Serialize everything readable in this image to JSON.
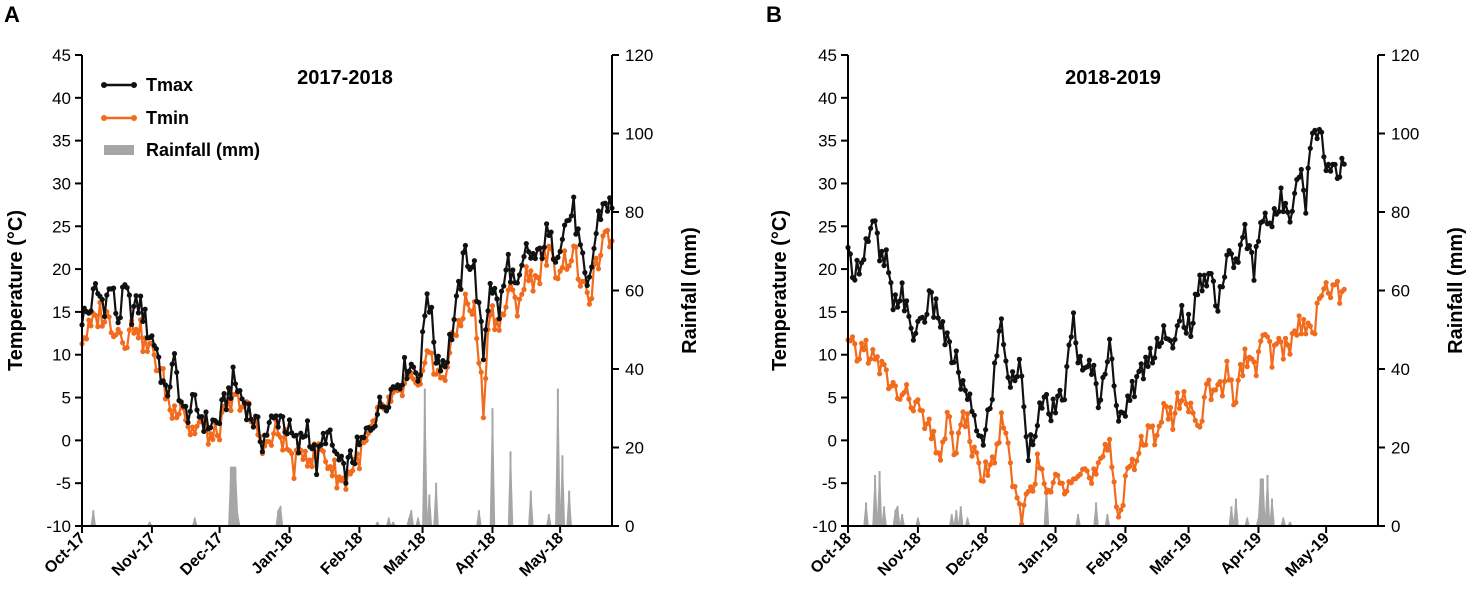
{
  "colors": {
    "tmax": "#111111",
    "tmin": "#f26b1d",
    "rain": "#a6a6a8",
    "axis": "#000000"
  },
  "legend": {
    "tmax": "Tmax",
    "tmin": "Tmin",
    "rain": "Rainfall (mm)"
  },
  "chart_data": [
    {
      "panel": "A",
      "type": "line",
      "title": "2017-2018",
      "ylabel": "Temperature (°C)",
      "y2label": "Rainfall (mm)",
      "ylim": [
        -10,
        45
      ],
      "yticks": [
        -10,
        -5,
        0,
        5,
        10,
        15,
        20,
        25,
        30,
        35,
        40,
        45
      ],
      "y2lim": [
        0,
        120
      ],
      "y2ticks": [
        0,
        20,
        40,
        60,
        80,
        100,
        120
      ],
      "xlim": [
        0,
        235
      ],
      "xticks": [
        {
          "day": 0,
          "label": "Oct-17"
        },
        {
          "day": 31,
          "label": "Nov-17"
        },
        {
          "day": 61,
          "label": "Dec-17"
        },
        {
          "day": 92,
          "label": "Jan-18"
        },
        {
          "day": 123,
          "label": "Feb-18"
        },
        {
          "day": 151,
          "label": "Mar-18"
        },
        {
          "day": 182,
          "label": "Apr-18"
        },
        {
          "day": 212,
          "label": "May-18"
        }
      ],
      "tmax_anchors": [
        [
          0,
          14.5
        ],
        [
          3,
          15
        ],
        [
          6,
          17.5
        ],
        [
          10,
          16
        ],
        [
          13,
          18
        ],
        [
          16,
          14
        ],
        [
          19,
          17.5
        ],
        [
          22,
          15
        ],
        [
          26,
          16
        ],
        [
          29,
          13
        ],
        [
          33,
          11
        ],
        [
          37,
          5
        ],
        [
          41,
          9
        ],
        [
          45,
          3
        ],
        [
          50,
          4
        ],
        [
          55,
          2
        ],
        [
          60,
          2
        ],
        [
          63,
          4
        ],
        [
          67,
          7
        ],
        [
          71,
          5
        ],
        [
          75,
          3
        ],
        [
          80,
          0
        ],
        [
          84,
          2
        ],
        [
          88,
          3
        ],
        [
          92,
          1
        ],
        [
          96,
          -1
        ],
        [
          100,
          2
        ],
        [
          104,
          -3
        ],
        [
          108,
          1
        ],
        [
          113,
          -2
        ],
        [
          116,
          -4
        ],
        [
          120,
          -2
        ],
        [
          125,
          0
        ],
        [
          130,
          3
        ],
        [
          135,
          5
        ],
        [
          140,
          7
        ],
        [
          145,
          9
        ],
        [
          150,
          8
        ],
        [
          153,
          18
        ],
        [
          157,
          10
        ],
        [
          161,
          9
        ],
        [
          165,
          14
        ],
        [
          170,
          22
        ],
        [
          174,
          20
        ],
        [
          178,
          10
        ],
        [
          181,
          19
        ],
        [
          185,
          15
        ],
        [
          189,
          21
        ],
        [
          193,
          17
        ],
        [
          197,
          22
        ],
        [
          202,
          21
        ],
        [
          206,
          24
        ],
        [
          210,
          22
        ],
        [
          214,
          25
        ],
        [
          218,
          27
        ],
        [
          221,
          22
        ],
        [
          224,
          17
        ],
        [
          229,
          26
        ],
        [
          232,
          28
        ],
        [
          235,
          27
        ]
      ],
      "tmin_anchors": [
        [
          0,
          12
        ],
        [
          4,
          13
        ],
        [
          8,
          15
        ],
        [
          12,
          14
        ],
        [
          16,
          13
        ],
        [
          20,
          12
        ],
        [
          24,
          14
        ],
        [
          28,
          11
        ],
        [
          32,
          10
        ],
        [
          36,
          7
        ],
        [
          40,
          3
        ],
        [
          44,
          5
        ],
        [
          48,
          1
        ],
        [
          53,
          2
        ],
        [
          58,
          0
        ],
        [
          62,
          2
        ],
        [
          66,
          4
        ],
        [
          70,
          5
        ],
        [
          74,
          3
        ],
        [
          78,
          1
        ],
        [
          82,
          -1
        ],
        [
          86,
          1
        ],
        [
          90,
          0
        ],
        [
          94,
          -3
        ],
        [
          98,
          -1
        ],
        [
          102,
          -2
        ],
        [
          106,
          -1
        ],
        [
          110,
          -3
        ],
        [
          116,
          -5
        ],
        [
          120,
          -3
        ],
        [
          125,
          -1
        ],
        [
          130,
          2
        ],
        [
          135,
          4
        ],
        [
          140,
          5
        ],
        [
          145,
          7
        ],
        [
          150,
          5
        ],
        [
          153,
          12
        ],
        [
          157,
          7
        ],
        [
          161,
          8
        ],
        [
          165,
          12
        ],
        [
          170,
          16
        ],
        [
          174,
          15
        ],
        [
          178,
          4
        ],
        [
          181,
          16
        ],
        [
          185,
          13
        ],
        [
          189,
          17
        ],
        [
          193,
          16
        ],
        [
          197,
          19
        ],
        [
          202,
          19
        ],
        [
          206,
          22
        ],
        [
          210,
          20
        ],
        [
          214,
          21
        ],
        [
          218,
          22
        ],
        [
          221,
          19
        ],
        [
          224,
          16
        ],
        [
          229,
          21
        ],
        [
          232,
          23
        ],
        [
          235,
          24
        ]
      ],
      "rain": [
        [
          5,
          4
        ],
        [
          30,
          1
        ],
        [
          50,
          2
        ],
        [
          66,
          15
        ],
        [
          67,
          15
        ],
        [
          68,
          15
        ],
        [
          69,
          3
        ],
        [
          87,
          4
        ],
        [
          88,
          5
        ],
        [
          131,
          1
        ],
        [
          136,
          2
        ],
        [
          138,
          1
        ],
        [
          145,
          2
        ],
        [
          146,
          4
        ],
        [
          149,
          2
        ],
        [
          152,
          35
        ],
        [
          154,
          8
        ],
        [
          157,
          11
        ],
        [
          176,
          4
        ],
        [
          182,
          30
        ],
        [
          190,
          19
        ],
        [
          199,
          9
        ],
        [
          207,
          3
        ],
        [
          211,
          35
        ],
        [
          213,
          18
        ],
        [
          216,
          9
        ]
      ],
      "rain_scale_factor": 1
    },
    {
      "panel": "B",
      "type": "line",
      "title": "2018-2019",
      "ylabel": "Temperature (°C)",
      "y2label": "Rainfall (mm)",
      "ylim": [
        -10,
        45
      ],
      "yticks": [
        -10,
        -5,
        0,
        5,
        10,
        15,
        20,
        25,
        30,
        35,
        40,
        45
      ],
      "y2lim": [
        0,
        120
      ],
      "y2ticks": [
        0,
        20,
        40,
        60,
        80,
        100,
        120
      ],
      "xlim": [
        0,
        235
      ],
      "xticks": [
        {
          "day": 0,
          "label": "Oct-18"
        },
        {
          "day": 31,
          "label": "Nov-18"
        },
        {
          "day": 61,
          "label": "Dec-18"
        },
        {
          "day": 92,
          "label": "Jan-19"
        },
        {
          "day": 123,
          "label": "Feb-19"
        },
        {
          "day": 151,
          "label": "Mar-19"
        },
        {
          "day": 182,
          "label": "Apr-19"
        },
        {
          "day": 212,
          "label": "May-19"
        }
      ],
      "tmax_anchors": [
        [
          0,
          21
        ],
        [
          4,
          20
        ],
        [
          8,
          23
        ],
        [
          12,
          25
        ],
        [
          14,
          21
        ],
        [
          17,
          21
        ],
        [
          20,
          15
        ],
        [
          24,
          18
        ],
        [
          28,
          12
        ],
        [
          32,
          14
        ],
        [
          36,
          16
        ],
        [
          40,
          15
        ],
        [
          44,
          11
        ],
        [
          48,
          9
        ],
        [
          52,
          5
        ],
        [
          56,
          3
        ],
        [
          60,
          -1
        ],
        [
          64,
          6
        ],
        [
          68,
          14
        ],
        [
          72,
          6
        ],
        [
          76,
          9
        ],
        [
          80,
          -1
        ],
        [
          84,
          3
        ],
        [
          88,
          4
        ],
        [
          92,
          3
        ],
        [
          96,
          6
        ],
        [
          100,
          14
        ],
        [
          104,
          7
        ],
        [
          108,
          9
        ],
        [
          112,
          4
        ],
        [
          116,
          13
        ],
        [
          120,
          1
        ],
        [
          124,
          5
        ],
        [
          128,
          7
        ],
        [
          132,
          9
        ],
        [
          136,
          11
        ],
        [
          140,
          13
        ],
        [
          144,
          10
        ],
        [
          148,
          15
        ],
        [
          152,
          13
        ],
        [
          156,
          18
        ],
        [
          160,
          20
        ],
        [
          164,
          16
        ],
        [
          168,
          21
        ],
        [
          172,
          21
        ],
        [
          176,
          24
        ],
        [
          180,
          20
        ],
        [
          184,
          27
        ],
        [
          188,
          25
        ],
        [
          192,
          28
        ],
        [
          196,
          27
        ],
        [
          200,
          32
        ],
        [
          203,
          28
        ],
        [
          206,
          36
        ],
        [
          209,
          37
        ],
        [
          212,
          32
        ],
        [
          215,
          32
        ],
        [
          218,
          32
        ],
        [
          220,
          33
        ]
      ],
      "tmin_anchors": [
        [
          0,
          11
        ],
        [
          4,
          10
        ],
        [
          8,
          11
        ],
        [
          12,
          9
        ],
        [
          16,
          8
        ],
        [
          20,
          6
        ],
        [
          24,
          5
        ],
        [
          28,
          5
        ],
        [
          32,
          3
        ],
        [
          36,
          1
        ],
        [
          40,
          -2
        ],
        [
          44,
          2
        ],
        [
          48,
          -1
        ],
        [
          52,
          3
        ],
        [
          56,
          -2
        ],
        [
          60,
          -4
        ],
        [
          64,
          -3
        ],
        [
          68,
          2
        ],
        [
          72,
          -3
        ],
        [
          76,
          -9
        ],
        [
          80,
          -6
        ],
        [
          84,
          -3
        ],
        [
          88,
          -6
        ],
        [
          92,
          -5
        ],
        [
          96,
          -5
        ],
        [
          100,
          -3
        ],
        [
          104,
          -3
        ],
        [
          108,
          -5
        ],
        [
          112,
          -3
        ],
        [
          116,
          -1
        ],
        [
          120,
          -9
        ],
        [
          124,
          -3
        ],
        [
          128,
          -2
        ],
        [
          132,
          0
        ],
        [
          136,
          1
        ],
        [
          140,
          4
        ],
        [
          144,
          2
        ],
        [
          148,
          6
        ],
        [
          152,
          3
        ],
        [
          156,
          3
        ],
        [
          160,
          6
        ],
        [
          164,
          5
        ],
        [
          168,
          8
        ],
        [
          172,
          5
        ],
        [
          176,
          10
        ],
        [
          180,
          8
        ],
        [
          184,
          12
        ],
        [
          188,
          10
        ],
        [
          192,
          11
        ],
        [
          196,
          11
        ],
        [
          200,
          14
        ],
        [
          203,
          13
        ],
        [
          206,
          12
        ],
        [
          209,
          18
        ],
        [
          212,
          17
        ],
        [
          215,
          18
        ],
        [
          218,
          17
        ],
        [
          220,
          18
        ]
      ],
      "rain": [
        [
          8,
          6
        ],
        [
          12,
          13
        ],
        [
          14,
          14
        ],
        [
          16,
          5
        ],
        [
          21,
          4
        ],
        [
          22,
          5
        ],
        [
          24,
          3
        ],
        [
          31,
          2
        ],
        [
          46,
          3
        ],
        [
          48,
          4
        ],
        [
          50,
          5
        ],
        [
          53,
          2
        ],
        [
          88,
          10
        ],
        [
          102,
          3
        ],
        [
          110,
          6
        ],
        [
          115,
          3
        ],
        [
          170,
          5
        ],
        [
          172,
          7
        ],
        [
          177,
          2
        ],
        [
          182,
          2
        ],
        [
          183,
          12
        ],
        [
          184,
          12
        ],
        [
          186,
          13
        ],
        [
          188,
          7
        ],
        [
          193,
          2
        ],
        [
          196,
          1
        ]
      ],
      "rain_scale_factor": 1
    }
  ]
}
